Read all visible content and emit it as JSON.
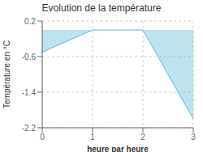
{
  "chart_data": {
    "type": "area",
    "title": "Evolution de la température",
    "xlabel": "heure par heure",
    "ylabel": "Température en °C",
    "x": [
      0,
      1,
      2,
      3
    ],
    "values": [
      -0.5,
      0.0,
      0.0,
      -2.0
    ],
    "color": "#5ab8d8",
    "xlim": [
      0,
      3
    ],
    "ylim": [
      -2.2,
      0.2
    ],
    "xticks": [
      0,
      1,
      2,
      3
    ],
    "yticks": [
      0.2,
      -0.6,
      -1.4,
      -2.2
    ],
    "grid": true
  }
}
